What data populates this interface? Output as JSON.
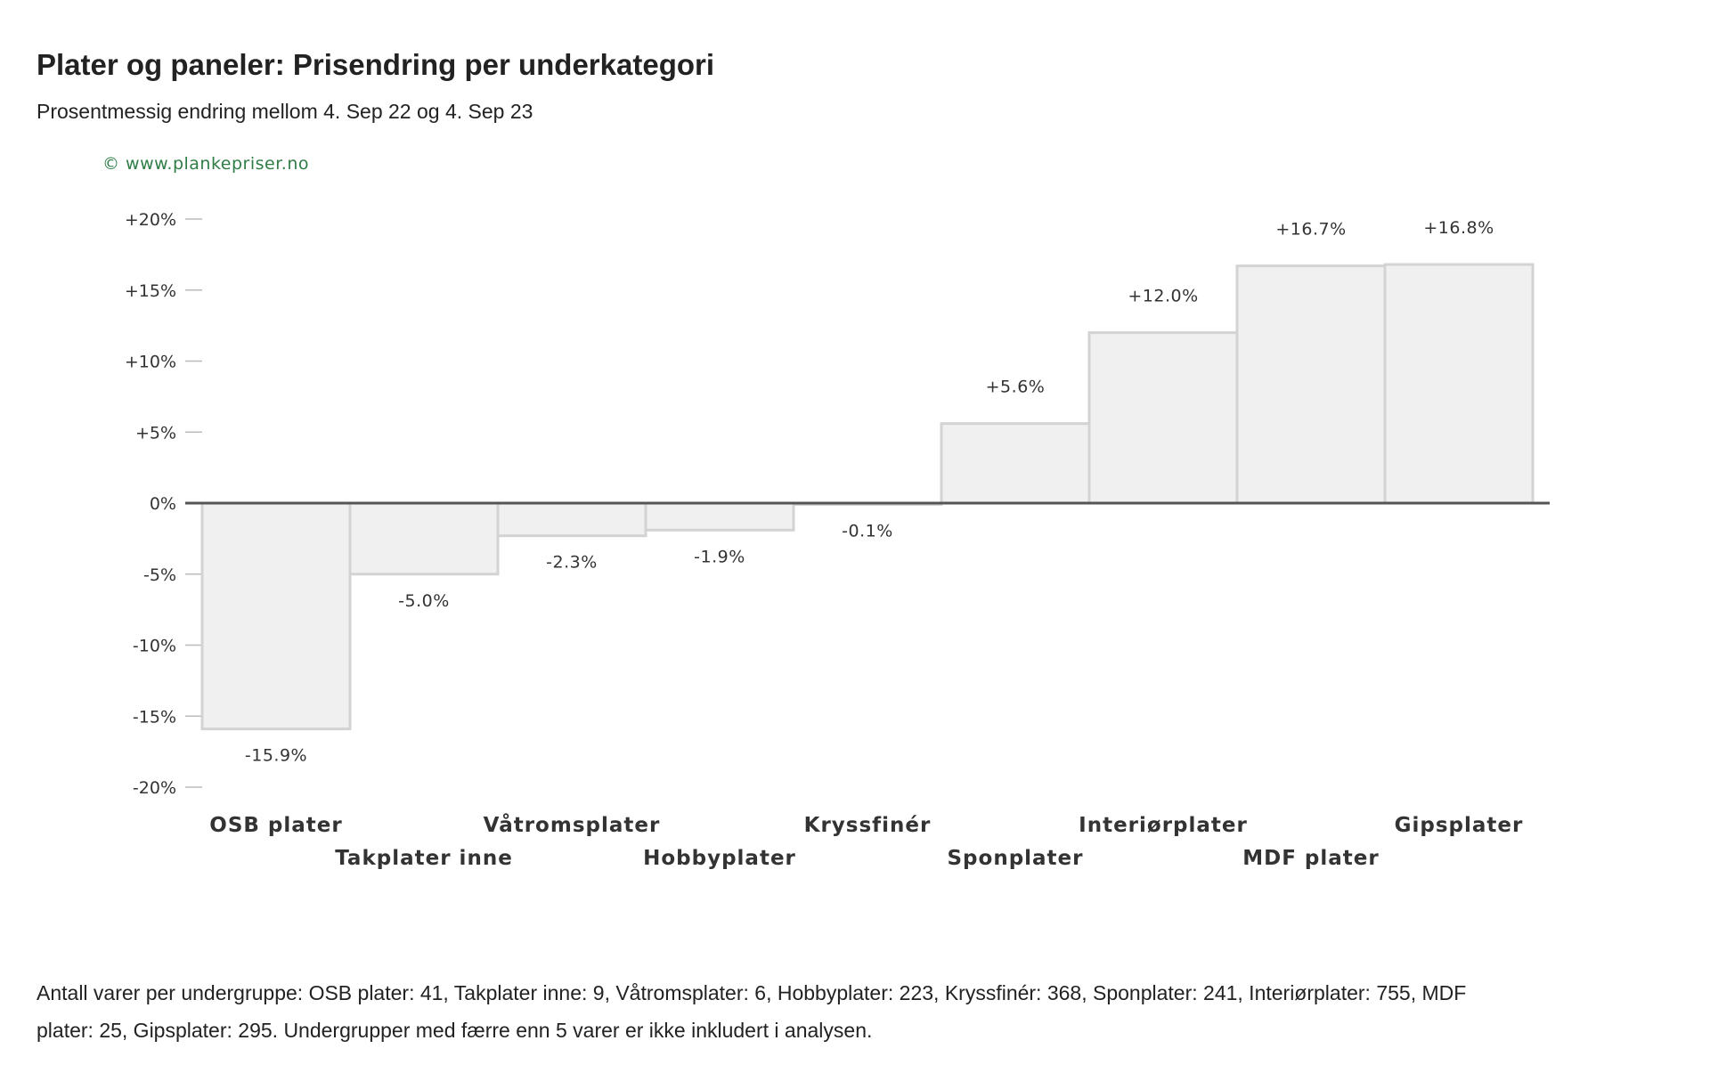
{
  "header": {
    "title": "Plater og paneler: Prisendring per underkategori",
    "subtitle": "Prosentmessig endring mellom 4. Sep 22 og 4. Sep 23"
  },
  "credit": "© www.plankepriser.no",
  "footnote": "Antall varer per undergruppe: OSB plater: 41, Takplater inne: 9, Våtromsplater: 6, Hobbyplater: 223, Kryssfinér: 368, Sponplater: 241, Interiørplater: 755, MDF plater: 25, Gipsplater: 295. Undergrupper med færre enn 5 varer er ikke inkludert i analysen.",
  "colors": {
    "bar_fill": "#f0f0f0",
    "bar_stroke": "#d3d3d3",
    "zero_line": "#555555",
    "axis_tick": "#bbbbbb",
    "credit": "#2e7d46",
    "text": "#222222"
  },
  "chart_data": {
    "type": "bar",
    "categories": [
      "OSB plater",
      "Takplater inne",
      "Våtromsplater",
      "Hobbyplater",
      "Kryssfinér",
      "Sponplater",
      "Interiørplater",
      "MDF plater",
      "Gipsplater"
    ],
    "values": [
      -15.9,
      -5.0,
      -2.3,
      -1.9,
      -0.1,
      5.6,
      12.0,
      16.7,
      16.8
    ],
    "value_labels": [
      "-15.9%",
      "-5.0%",
      "-2.3%",
      "-1.9%",
      "-0.1%",
      "+5.6%",
      "+12.0%",
      "+16.7%",
      "+16.8%"
    ],
    "y_ticks": [
      20,
      15,
      10,
      5,
      0,
      -5,
      -10,
      -15,
      -20
    ],
    "y_tick_labels": [
      "+20%",
      "+15%",
      "+10%",
      "+5%",
      "0%",
      "-5%",
      "-10%",
      "-15%",
      "-20%"
    ],
    "ylim": [
      -20,
      20
    ],
    "grid": false,
    "legend": "none"
  }
}
